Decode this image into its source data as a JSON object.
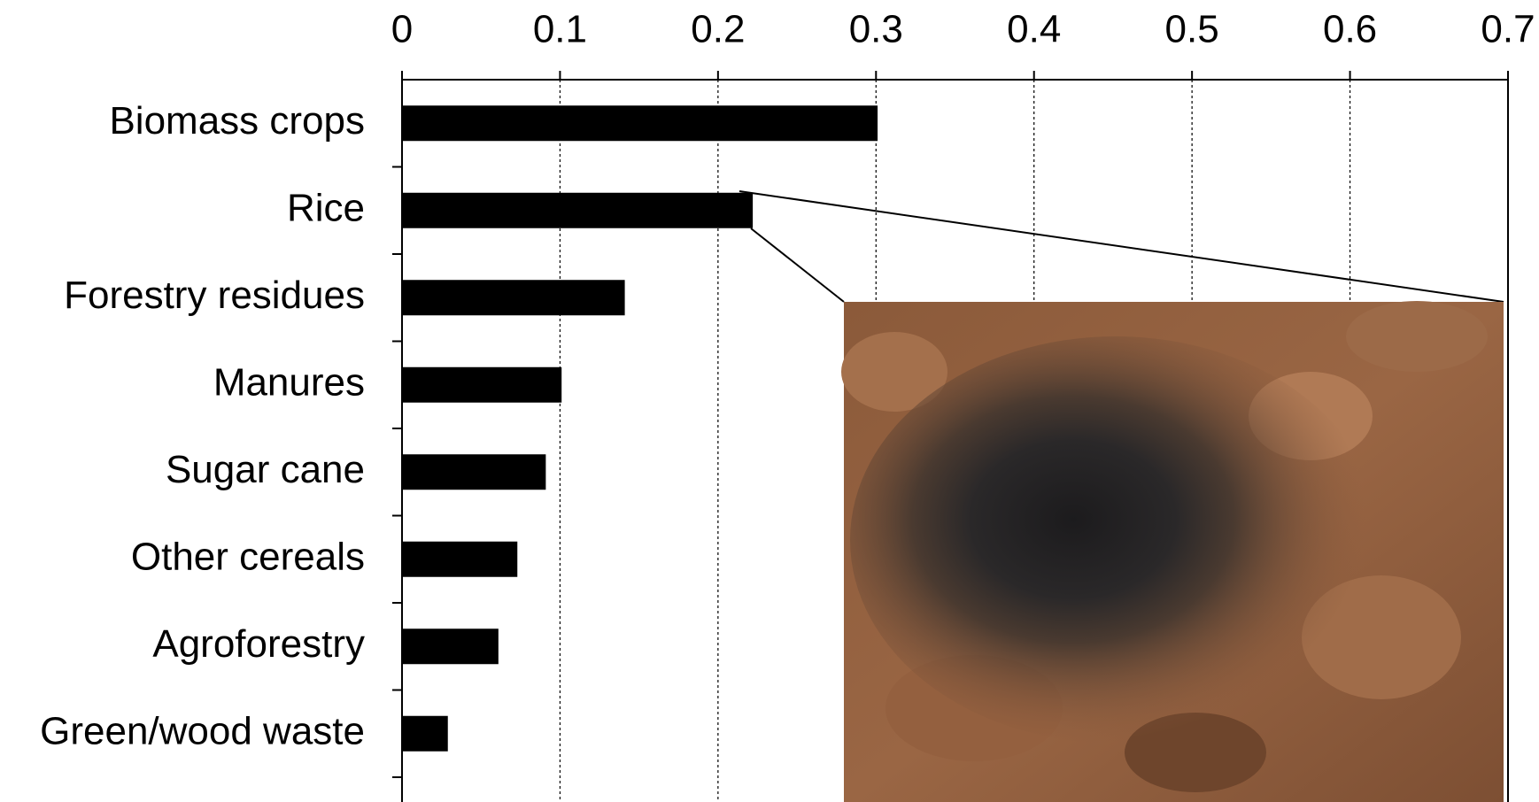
{
  "chart_data": {
    "type": "bar",
    "orientation": "horizontal",
    "categories": [
      "Biomass crops",
      "Rice",
      "Forestry residues",
      "Manures",
      "Sugar cane",
      "Other cereals",
      "Agroforestry",
      "Green/wood waste"
    ],
    "values": [
      0.301,
      0.222,
      0.141,
      0.101,
      0.091,
      0.073,
      0.061,
      0.029
    ],
    "color": "#000000",
    "xlim": [
      0,
      0.7
    ],
    "xticks": [
      0,
      0.1,
      0.2,
      0.3,
      0.4,
      0.5,
      0.6,
      0.7
    ],
    "grid": true
  }
}
